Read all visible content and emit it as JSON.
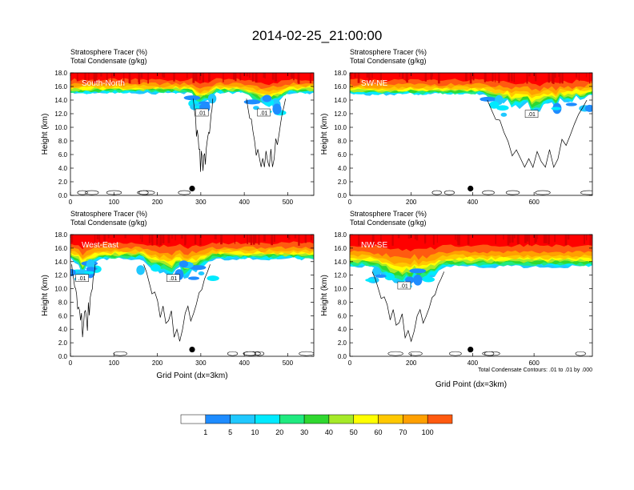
{
  "colors": {
    "levels": [
      "#ffffff",
      "#1e8cff",
      "#20c8ff",
      "#00eaff",
      "#20ea80",
      "#30d830",
      "#a6ea28",
      "#ffff00",
      "#ffc800",
      "#ffa000",
      "#ff5a10",
      "#ff0000"
    ],
    "band_strat": "#ff0000",
    "band_strat2": "#d80000",
    "contour": "#000000"
  },
  "chart_data": {
    "type": "contour",
    "title": "2014-02-25_21:00:00",
    "left_string_1": "Stratosphere Tracer   (%)",
    "left_string_2": "Total Condensate   (g/kg)",
    "ylabel": "Height (km)",
    "xlabel": "Grid Point (dx=3km)",
    "ylim": [
      0,
      18
    ],
    "y_ticks": [
      "0.0",
      "2.0",
      "4.0",
      "6.0",
      "8.0",
      "10.0",
      "12.0",
      "14.0",
      "16.0",
      "18.0"
    ],
    "contour_note": "Total Condensate Contours: .01 to .01 by .000",
    "contour_label": ".01",
    "colorbar": {
      "labels": [
        "1",
        "5",
        "10",
        "20",
        "30",
        "40",
        "50",
        "60",
        "70",
        "100"
      ]
    },
    "panels": [
      {
        "name": "South-North",
        "xlim": [
          0,
          560
        ],
        "x_ticks": [
          "0",
          "100",
          "200",
          "300",
          "400",
          "500"
        ],
        "marker": {
          "x": 280,
          "y": 1.0
        },
        "tracer_base_km": 15.2,
        "cloud_regions": [
          [
            280,
            330
          ],
          [
            400,
            500
          ]
        ]
      },
      {
        "name": "SW-NE",
        "xlim": [
          0,
          790
        ],
        "x_ticks": [
          "0",
          "200",
          "400",
          "600"
        ],
        "marker": {
          "x": 393,
          "y": 1.0
        },
        "tracer_base_km": 15.0,
        "cloud_regions": [
          [
            430,
            790
          ]
        ]
      },
      {
        "name": "West-East",
        "xlim": [
          0,
          560
        ],
        "x_ticks": [
          "0",
          "100",
          "200",
          "300",
          "400",
          "500"
        ],
        "marker": {
          "x": 280,
          "y": 1.0
        },
        "tracer_base_km": 14.6,
        "cloud_regions": [
          [
            0,
            60
          ],
          [
            160,
            330
          ]
        ]
      },
      {
        "name": "NW-SE",
        "xlim": [
          0,
          790
        ],
        "x_ticks": [
          "0",
          "200",
          "400",
          "600"
        ],
        "marker": {
          "x": 393,
          "y": 1.0
        },
        "tracer_base_km": 13.5,
        "cloud_regions": [
          [
            60,
            320
          ]
        ]
      }
    ]
  }
}
